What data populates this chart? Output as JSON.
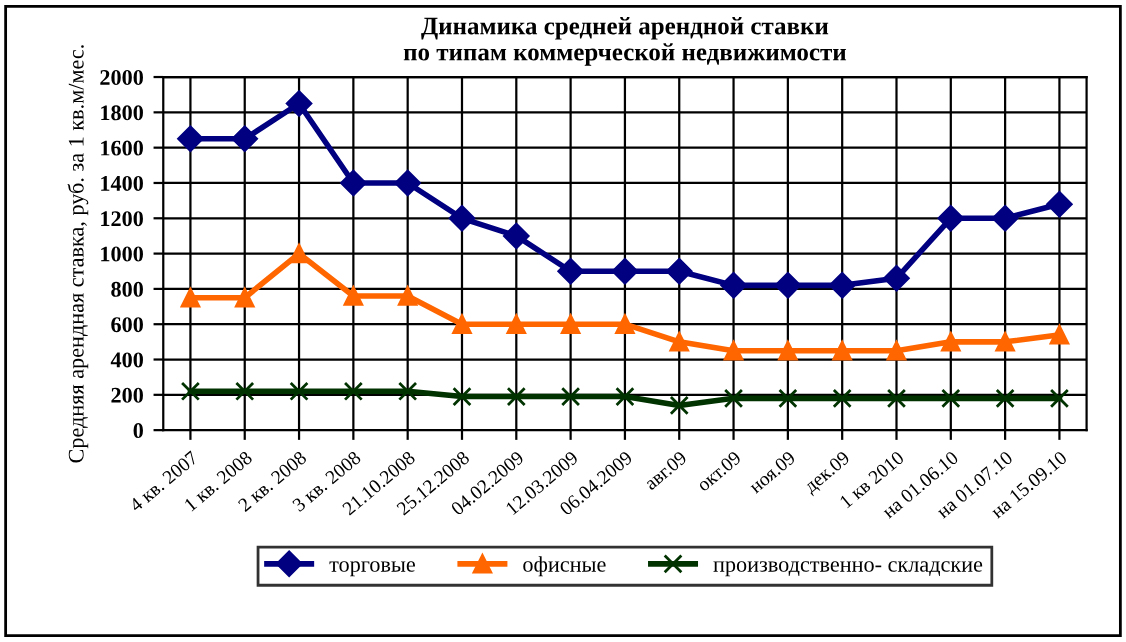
{
  "chart_data": {
    "type": "line",
    "title": "Динамика средней арендной ставки\nпо типам коммерческой недвижимости",
    "ylabel": "Средняя арендная ставка, руб. за 1 кв.м/мес.",
    "categories": [
      "4 кв. 2007",
      "1 кв. 2008",
      "2 кв. 2008",
      "3 кв. 2008",
      "21.10.2008",
      "25.12.2008",
      "04.02.2009",
      "12.03.2009",
      "06.04.2009",
      "авг.09",
      "окт.09",
      "ноя.09",
      "дек.09",
      "1 кв 2010",
      "на 01.06.10",
      "на 01.07.10",
      "на 15.09.10"
    ],
    "series": [
      {
        "name": "торговые",
        "color": "#000080",
        "marker": "diamond",
        "values": [
          1650,
          1650,
          1850,
          1400,
          1400,
          1200,
          1100,
          900,
          900,
          900,
          820,
          820,
          820,
          860,
          1200,
          1200,
          1280
        ]
      },
      {
        "name": "офисные",
        "color": "#ff6600",
        "marker": "triangle",
        "values": [
          750,
          750,
          1000,
          760,
          760,
          600,
          600,
          600,
          600,
          500,
          450,
          450,
          450,
          450,
          500,
          500,
          540
        ]
      },
      {
        "name": "производственно- складские",
        "color": "#003300",
        "marker": "cross",
        "values": [
          220,
          220,
          220,
          220,
          220,
          190,
          190,
          190,
          190,
          140,
          180,
          180,
          180,
          180,
          180,
          180,
          180
        ]
      }
    ],
    "ylim": [
      0,
      2000
    ],
    "yticks": [
      0,
      200,
      400,
      600,
      800,
      1000,
      1200,
      1400,
      1600,
      1800,
      2000
    ],
    "grid": true,
    "legend": "bottom"
  }
}
